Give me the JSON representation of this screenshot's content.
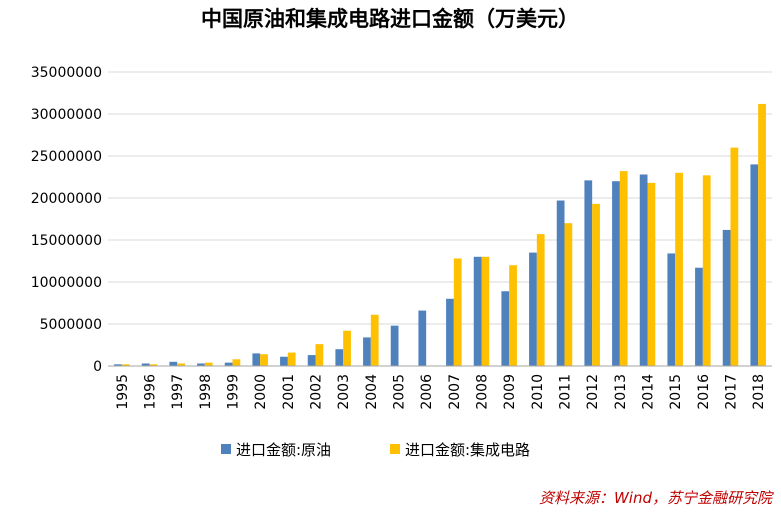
{
  "chart_data": {
    "type": "bar",
    "title": "中国原油和集成电路进口金额（万美元）",
    "xlabel": "",
    "ylabel": "",
    "ylim": [
      0,
      35000000
    ],
    "yticks": [
      "0",
      "5000000",
      "10000000",
      "15000000",
      "20000000",
      "25000000",
      "30000000",
      "35000000"
    ],
    "categories": [
      "1995",
      "1996",
      "1997",
      "1998",
      "1999",
      "2000",
      "2001",
      "2002",
      "2003",
      "2004",
      "2005",
      "2006",
      "2007",
      "2008",
      "2009",
      "2010",
      "2011",
      "2012",
      "2013",
      "2014",
      "2015",
      "2016",
      "2017",
      "2018"
    ],
    "series": [
      {
        "name": "进口金额:原油",
        "color": "#4f81bd",
        "values": [
          200000,
          300000,
          500000,
          300000,
          400000,
          1500000,
          1100000,
          1300000,
          2000000,
          3400000,
          4800000,
          6600000,
          8000000,
          13000000,
          8900000,
          13500000,
          19700000,
          22100000,
          22000000,
          22800000,
          13400000,
          11700000,
          16200000,
          24000000
        ]
      },
      {
        "name": "进口金额:集成电路",
        "color": "#ffc000",
        "values": [
          200000,
          200000,
          300000,
          400000,
          800000,
          1400000,
          1600000,
          2600000,
          4200000,
          6100000,
          0,
          0,
          12800000,
          13000000,
          12000000,
          15700000,
          17000000,
          19300000,
          23200000,
          21800000,
          23000000,
          22700000,
          26000000,
          31200000
        ]
      }
    ],
    "legend_position": "bottom",
    "grid": true
  },
  "source_note": "资料来源：Wind，苏宁金融研究院"
}
